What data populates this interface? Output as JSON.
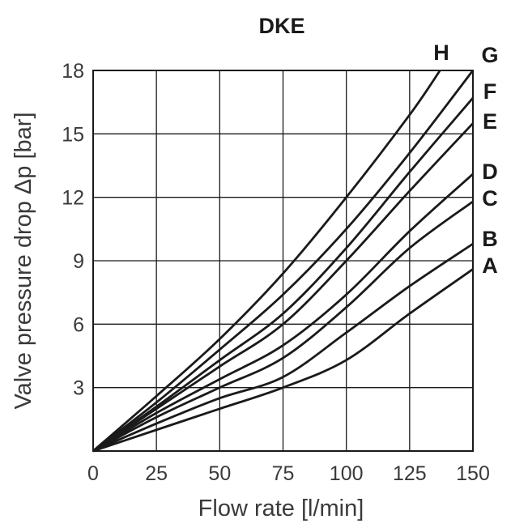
{
  "chart_data": {
    "type": "line",
    "title": "DKE",
    "xlabel": "Flow rate [l/min]",
    "ylabel": "Valve pressure drop Δp [bar]",
    "xlim": [
      0,
      150
    ],
    "ylim": [
      0,
      18
    ],
    "xticks": [
      "0",
      "25",
      "50",
      "75",
      "100",
      "125",
      "150"
    ],
    "yticks": [
      "3",
      "6",
      "9",
      "12",
      "15",
      "18"
    ],
    "grid": true,
    "line_color": "#1a1a1a",
    "series": [
      {
        "name": "H",
        "x": [
          0,
          25,
          50,
          75,
          100,
          125,
          137
        ],
        "values": [
          0,
          2.6,
          5.3,
          8.4,
          12.0,
          15.9,
          18.0
        ]
      },
      {
        "name": "G",
        "x": [
          0,
          25,
          50,
          75,
          100,
          125,
          150
        ],
        "values": [
          0,
          2.3,
          4.8,
          7.4,
          10.5,
          14.1,
          18.0
        ]
      },
      {
        "name": "F",
        "x": [
          0,
          25,
          50,
          75,
          100,
          125,
          150
        ],
        "values": [
          0,
          2.1,
          4.3,
          6.5,
          9.6,
          13.2,
          16.7
        ]
      },
      {
        "name": "E",
        "x": [
          0,
          25,
          50,
          75,
          100,
          125,
          150
        ],
        "values": [
          0,
          2.0,
          4.0,
          6.0,
          9.0,
          12.3,
          15.5
        ]
      },
      {
        "name": "D",
        "x": [
          0,
          25,
          50,
          75,
          100,
          125,
          150
        ],
        "values": [
          0,
          1.8,
          3.4,
          5.0,
          7.4,
          10.4,
          13.1
        ]
      },
      {
        "name": "C",
        "x": [
          0,
          25,
          50,
          75,
          100,
          125,
          150
        ],
        "values": [
          0,
          1.6,
          3.0,
          4.4,
          6.8,
          9.6,
          11.8
        ]
      },
      {
        "name": "B",
        "x": [
          0,
          25,
          50,
          75,
          100,
          125,
          150
        ],
        "values": [
          0,
          1.3,
          2.5,
          3.5,
          5.6,
          7.8,
          9.8
        ]
      },
      {
        "name": "A",
        "x": [
          0,
          25,
          50,
          75,
          100,
          125,
          150
        ],
        "values": [
          0,
          1.0,
          2.0,
          3.0,
          4.3,
          6.5,
          8.6
        ]
      }
    ]
  }
}
